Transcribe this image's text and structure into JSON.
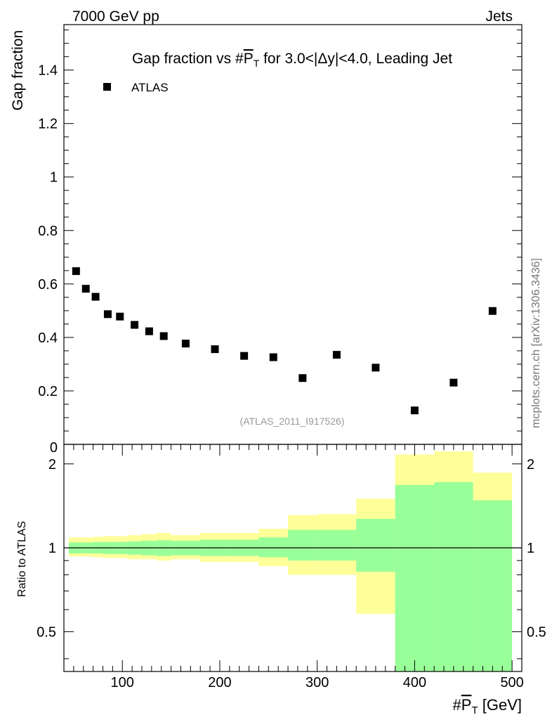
{
  "header": {
    "left": "7000 GeV pp",
    "right": "Jets"
  },
  "side_label": "mcplots.cern.ch [arXiv:1306.3436]",
  "chart_data": [
    {
      "type": "scatter",
      "title": "Gap fraction vs #P̄T for 3.0<|Δy|<4.0, Leading Jet",
      "title_parts": {
        "pre": "Gap fraction vs #",
        "sym": "P",
        "sub": "T",
        "post": " for 3.0<|Δy|<4.0, Leading Jet"
      },
      "ylabel": "Gap fraction",
      "xlim": [
        40,
        510
      ],
      "ylim": [
        0,
        1.57
      ],
      "yticks": [
        0.2,
        0.4,
        0.6,
        0.8,
        1,
        1.2,
        1.4
      ],
      "ytick_labels": [
        "0.2",
        "0.4",
        "0.6",
        "0.8",
        "1",
        "1.2",
        "1.4"
      ],
      "y_zero_label": "0",
      "legend": {
        "label": "ATLAS",
        "position": "top-left"
      },
      "watermark": "(ATLAS_2011_I917526)",
      "series": [
        {
          "name": "ATLAS",
          "x": [
            52.5,
            62.5,
            72.5,
            85,
            97.5,
            112.5,
            127.5,
            142.5,
            165,
            195,
            225,
            255,
            285,
            320,
            360,
            400,
            440,
            480
          ],
          "values": [
            0.648,
            0.582,
            0.552,
            0.487,
            0.478,
            0.447,
            0.423,
            0.405,
            0.377,
            0.356,
            0.331,
            0.326,
            0.248,
            0.335,
            0.287,
            0.127,
            0.231,
            0.499
          ]
        }
      ]
    },
    {
      "type": "area",
      "ylabel": "Ratio to ATLAS",
      "xlabel": "#P̄T [GeV]",
      "xlabel_parts": {
        "pre": "#",
        "sym": "P",
        "sub": "T",
        "post": " [GeV]"
      },
      "xlim": [
        40,
        510
      ],
      "ylim": [
        0.36,
        2.35
      ],
      "scale": "log",
      "xticks": [
        100,
        200,
        300,
        400,
        500
      ],
      "xtick_labels": [
        "100",
        "200",
        "300",
        "400",
        "500"
      ],
      "yticks": [
        0.5,
        1,
        2
      ],
      "ytick_labels": [
        "0.5",
        "1",
        "2"
      ],
      "reference_line": 1,
      "bands": {
        "colors": {
          "outer": "#ffff99",
          "inner": "#99ff99"
        },
        "edges": [
          45,
          60,
          70,
          80,
          90,
          105,
          120,
          135,
          150,
          180,
          210,
          240,
          270,
          300,
          340,
          380,
          420,
          460,
          500
        ],
        "outer_lo": [
          0.93,
          0.93,
          0.925,
          0.92,
          0.92,
          0.91,
          0.91,
          0.9,
          0.91,
          0.89,
          0.89,
          0.86,
          0.8,
          0.8,
          0.58,
          0.36,
          0.36,
          0.62
        ],
        "outer_hi": [
          1.09,
          1.09,
          1.095,
          1.1,
          1.1,
          1.11,
          1.12,
          1.13,
          1.11,
          1.13,
          1.13,
          1.17,
          1.31,
          1.32,
          1.5,
          2.16,
          2.22,
          1.86
        ],
        "inner_lo": [
          0.955,
          0.955,
          0.955,
          0.95,
          0.95,
          0.945,
          0.94,
          0.935,
          0.94,
          0.935,
          0.935,
          0.925,
          0.9,
          0.9,
          0.82,
          0.36,
          0.36,
          0.36
        ],
        "inner_hi": [
          1.045,
          1.045,
          1.05,
          1.05,
          1.05,
          1.055,
          1.06,
          1.065,
          1.06,
          1.07,
          1.07,
          1.09,
          1.16,
          1.16,
          1.27,
          1.68,
          1.72,
          1.48
        ]
      }
    }
  ]
}
